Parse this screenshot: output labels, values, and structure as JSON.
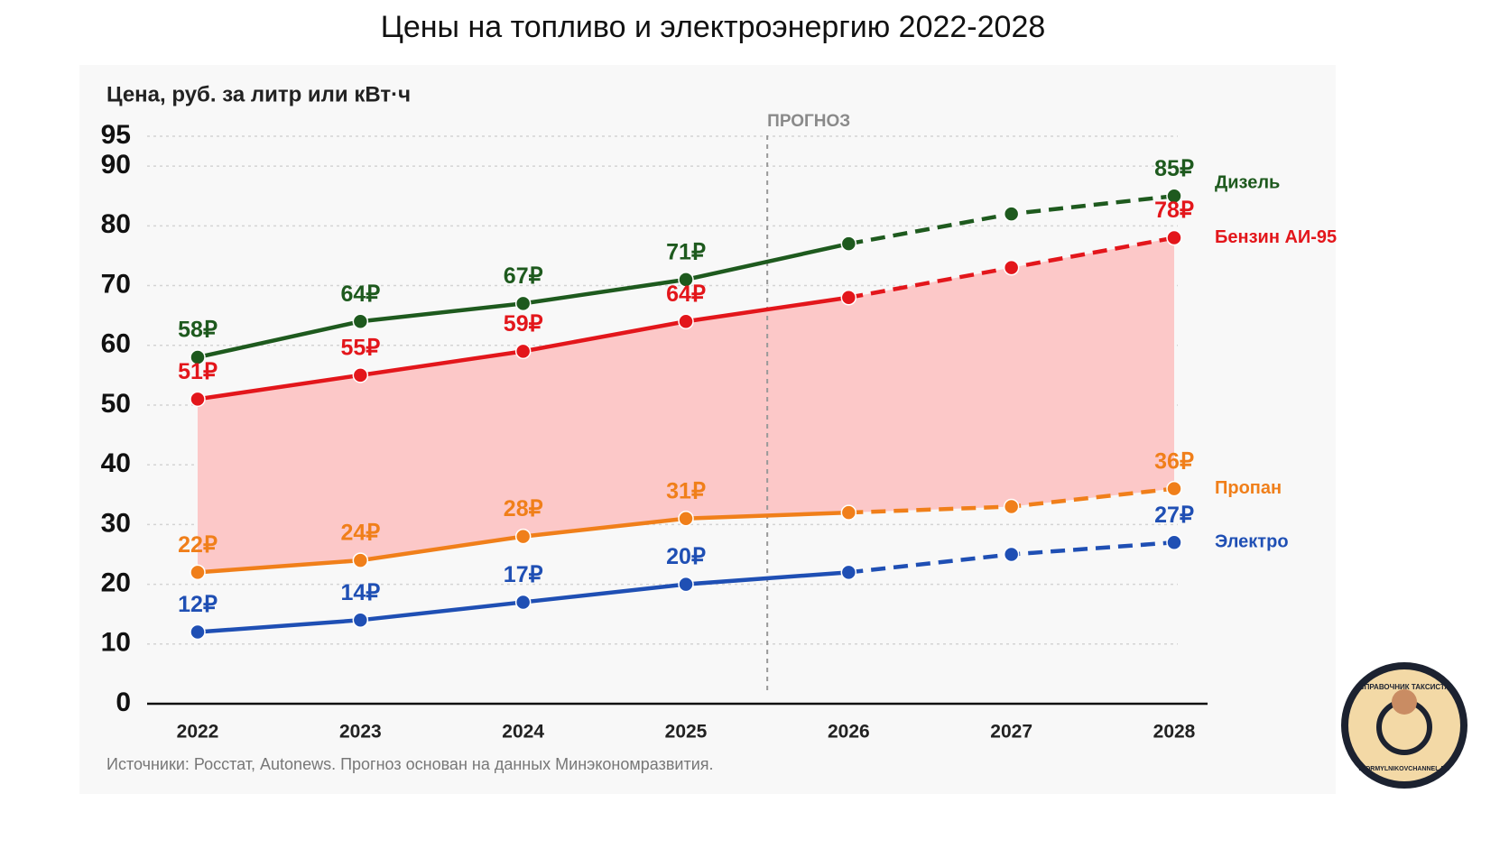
{
  "chart_data": {
    "type": "line",
    "title": "Цены на топливо и электроэнергию 2022-2028",
    "y_label": "Цена, руб. за литр или кВт·ч",
    "categories": [
      "2022",
      "2023",
      "2024",
      "2025",
      "2026",
      "2027",
      "2028"
    ],
    "forecast_start": "2026",
    "forecast_label": "ПРОГНОЗ",
    "series": [
      {
        "name": "Дизель",
        "color": "#1e5a1e",
        "values": [
          58,
          64,
          67,
          71,
          77,
          82,
          85
        ],
        "value_labels": [
          "58₽",
          "64₽",
          "67₽",
          "71₽",
          null,
          null,
          "85₽"
        ]
      },
      {
        "name": "Бензин АИ-95",
        "color": "#e3161b",
        "values": [
          51,
          55,
          59,
          64,
          68,
          73,
          78
        ],
        "value_labels": [
          "51₽",
          "55₽",
          "59₽",
          "64₽",
          null,
          null,
          "78₽"
        ]
      },
      {
        "name": "Пропан",
        "color": "#f07f1a",
        "values": [
          22,
          24,
          28,
          31,
          32,
          33,
          36
        ],
        "value_labels": [
          "22₽",
          "24₽",
          "28₽",
          "31₽",
          null,
          null,
          "36₽"
        ]
      },
      {
        "name": "Электро",
        "color": "#1f4fb4",
        "values": [
          12,
          14,
          17,
          20,
          22,
          25,
          27
        ],
        "value_labels": [
          "12₽",
          "14₽",
          "17₽",
          "20₽",
          null,
          null,
          "27₽"
        ]
      }
    ],
    "fill_between": [
      1,
      2
    ],
    "fill_color": "#fcc8c8",
    "ylim": [
      0,
      95
    ],
    "yticks": [
      0,
      10,
      20,
      30,
      40,
      50,
      60,
      70,
      80,
      90,
      95
    ],
    "grid": true,
    "source": "Источники: Росстат, Autonews. Прогноз основан на данных Минэкономразвития."
  },
  "logo": {
    "top": "СПРАВОЧНИК ТАКСИСТА",
    "bottom": "IGORMYLNIKOVCHANNEL.RU"
  }
}
